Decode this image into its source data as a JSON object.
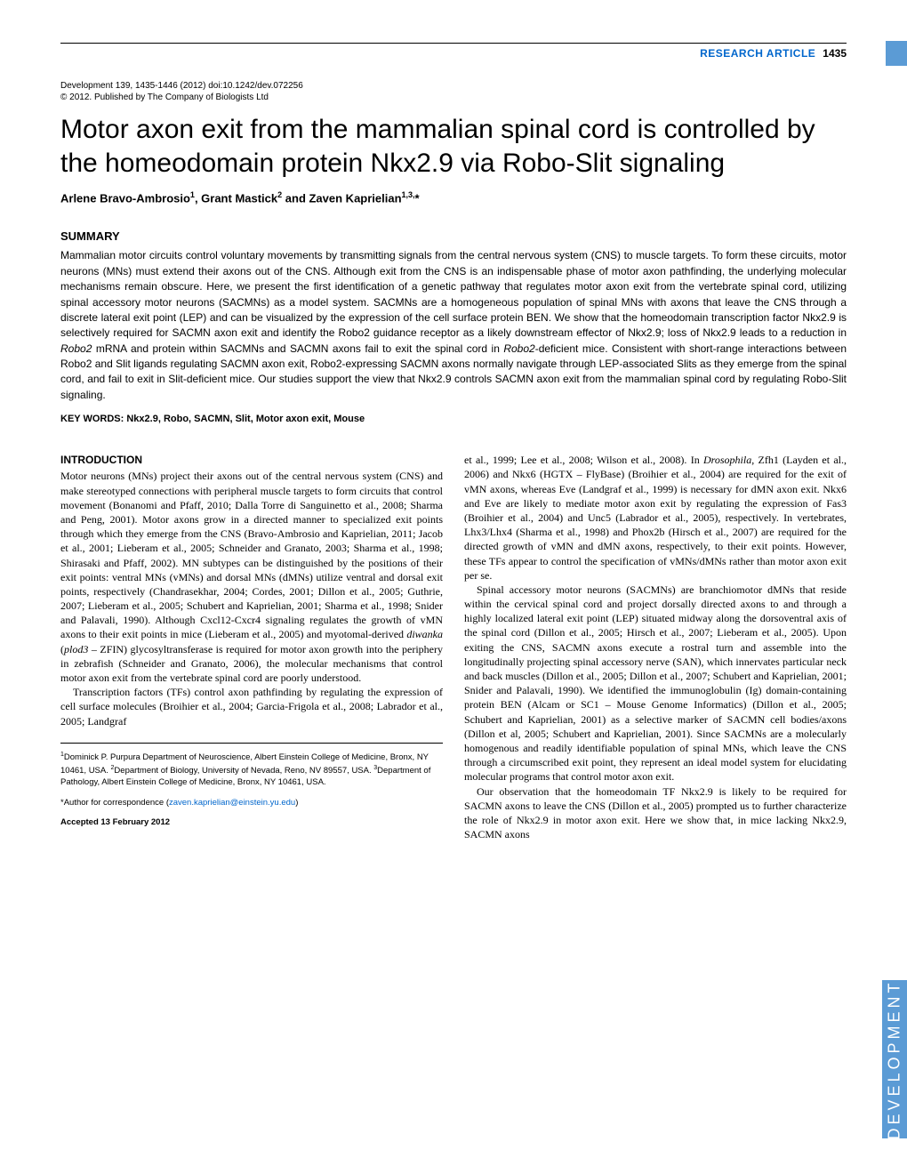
{
  "header": {
    "research_article": "RESEARCH ARTICLE",
    "page_number": "1435"
  },
  "citation": "Development 139, 1435-1446 (2012) doi:10.1242/dev.072256",
  "copyright": "© 2012. Published by The Company of Biologists Ltd",
  "title": "Motor axon exit from the mammalian spinal cord is controlled by the homeodomain protein Nkx2.9 via Robo-Slit signaling",
  "authors_html": "Arlene Bravo-Ambrosio<sup>1</sup>, Grant Mastick<sup>2</sup> and Zaven Kaprielian<sup>1,3,</sup>*",
  "summary_heading": "SUMMARY",
  "summary_html": "Mammalian motor circuits control voluntary movements by transmitting signals from the central nervous system (CNS) to muscle targets. To form these circuits, motor neurons (MNs) must extend their axons out of the CNS. Although exit from the CNS is an indispensable phase of motor axon pathfinding, the underlying molecular mechanisms remain obscure. Here, we present the first identification of a genetic pathway that regulates motor axon exit from the vertebrate spinal cord, utilizing spinal accessory motor neurons (SACMNs) as a model system. SACMNs are a homogeneous population of spinal MNs with axons that leave the CNS through a discrete lateral exit point (LEP) and can be visualized by the expression of the cell surface protein BEN. We show that the homeodomain transcription factor Nkx2.9 is selectively required for SACMN axon exit and identify the Robo2 guidance receptor as a likely downstream effector of Nkx2.9; loss of Nkx2.9 leads to a reduction in <em>Robo2</em> mRNA and protein within SACMNs and SACMN axons fail to exit the spinal cord in <em>Robo2</em>-deficient mice. Consistent with short-range interactions between Robo2 and Slit ligands regulating SACMN axon exit, Robo2-expressing SACMN axons normally navigate through LEP-associated Slits as they emerge from the spinal cord, and fail to exit in Slit-deficient mice. Our studies support the view that Nkx2.9 controls SACMN axon exit from the mammalian spinal cord by regulating Robo-Slit signaling.",
  "keywords": "KEY WORDS: Nkx2.9, Robo, SACMN, Slit, Motor axon exit, Mouse",
  "intro_heading": "INTRODUCTION",
  "col1_p1_html": "Motor neurons (MNs) project their axons out of the central nervous system (CNS) and make stereotyped connections with peripheral muscle targets to form circuits that control movement (Bonanomi and Pfaff, 2010; Dalla Torre di Sanguinetto et al., 2008; Sharma and Peng, 2001). Motor axons grow in a directed manner to specialized exit points through which they emerge from the CNS (Bravo-Ambrosio and Kaprielian, 2011; Jacob et al., 2001; Lieberam et al., 2005; Schneider and Granato, 2003; Sharma et al., 1998; Shirasaki and Pfaff, 2002). MN subtypes can be distinguished by the positions of their exit points: ventral MNs (vMNs) and dorsal MNs (dMNs) utilize ventral and dorsal exit points, respectively (Chandrasekhar, 2004; Cordes, 2001; Dillon et al., 2005; Guthrie, 2007; Lieberam et al., 2005; Schubert and Kaprielian, 2001; Sharma et al., 1998; Snider and Palavali, 1990). Although Cxcl12-Cxcr4 signaling regulates the growth of vMN axons to their exit points in mice (Lieberam et al., 2005) and myotomal-derived <em>diwanka</em> (<em>plod3</em> – ZFIN) glycosyltransferase is required for motor axon growth into the periphery in zebrafish (Schneider and Granato, 2006), the molecular mechanisms that control motor axon exit from the vertebrate spinal cord are poorly understood.",
  "col1_p2_html": "Transcription factors (TFs) control axon pathfinding by regulating the expression of cell surface molecules (Broihier et al., 2004; Garcia-Frigola et al., 2008; Labrador et al., 2005; Landgraf",
  "affiliations_html": "<sup>1</sup>Dominick P. Purpura Department of Neuroscience, Albert Einstein College of Medicine, Bronx, NY 10461, USA. <sup>2</sup>Department of Biology, University of Nevada, Reno, NV 89557, USA. <sup>3</sup>Department of Pathology, Albert Einstein College of Medicine, Bronx, NY 10461, USA.",
  "correspondence_prefix": "*Author for correspondence (",
  "correspondence_email": "zaven.kaprielian@einstein.yu.edu",
  "correspondence_suffix": ")",
  "accepted": "Accepted 13 February 2012",
  "col2_p1_html": "et al., 1999; Lee et al., 2008; Wilson et al., 2008). In <em>Drosophila</em>, Zfh1 (Layden et al., 2006) and Nkx6 (HGTX – FlyBase) (Broihier et al., 2004) are required for the exit of vMN axons, whereas Eve (Landgraf et al., 1999) is necessary for dMN axon exit. Nkx6 and Eve are likely to mediate motor axon exit by regulating the expression of Fas3 (Broihier et al., 2004) and Unc5 (Labrador et al., 2005), respectively. In vertebrates, Lhx3/Lhx4 (Sharma et al., 1998) and Phox2b (Hirsch et al., 2007) are required for the directed growth of vMN and dMN axons, respectively, to their exit points. However, these TFs appear to control the specification of vMNs/dMNs rather than motor axon exit per se.",
  "col2_p2_html": "Spinal accessory motor neurons (SACMNs) are branchiomotor dMNs that reside within the cervical spinal cord and project dorsally directed axons to and through a highly localized lateral exit point (LEP) situated midway along the dorsoventral axis of the spinal cord (Dillon et al., 2005; Hirsch et al., 2007; Lieberam et al., 2005). Upon exiting the CNS, SACMN axons execute a rostral turn and assemble into the longitudinally projecting spinal accessory nerve (SAN), which innervates particular neck and back muscles (Dillon et al., 2005; Dillon et al., 2007; Schubert and Kaprielian, 2001; Snider and Palavali, 1990). We identified the immunoglobulin (Ig) domain-containing protein BEN (Alcam or SC1 – Mouse Genome Informatics) (Dillon et al., 2005; Schubert and Kaprielian, 2001) as a selective marker of SACMN cell bodies/axons (Dillon et al, 2005; Schubert and Kaprielian, 2001). Since SACMNs are a molecularly homogenous and readily identifiable population of spinal MNs, which leave the CNS through a circumscribed exit point, they represent an ideal model system for elucidating molecular programs that control motor axon exit.",
  "col2_p3_html": "Our observation that the homeodomain TF Nkx2.9 is likely to be required for SACMN axons to leave the CNS (Dillon et al., 2005) prompted us to further characterize the role of Nkx2.9 in motor axon exit. Here we show that, in mice lacking Nkx2.9, SACMN axons",
  "side_tab": "DEVELOPMENT",
  "colors": {
    "link_blue": "#0066cc",
    "tab_blue": "#5b9bd5",
    "text": "#000000",
    "background": "#ffffff"
  },
  "typography": {
    "title_fontsize": 30,
    "body_fontsize": 12,
    "summary_fontsize": 12,
    "citation_fontsize": 10,
    "affil_fontsize": 9.5
  }
}
